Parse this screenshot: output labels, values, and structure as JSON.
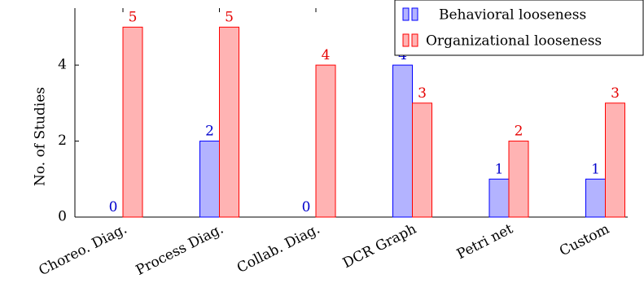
{
  "chart_data": {
    "type": "bar",
    "categories": [
      "Choreo. Diag.",
      "Process Diag.",
      "Collab. Diag.",
      "DCR Graph",
      "Petri net",
      "Custom"
    ],
    "series": [
      {
        "name": "Behavioral looseness",
        "values": [
          0,
          2,
          0,
          4,
          1,
          1
        ],
        "fill": "#b3b3ff",
        "stroke": "#0000ff",
        "label_color": "#0000cc"
      },
      {
        "name": "Organizational looseness",
        "values": [
          5,
          5,
          4,
          3,
          2,
          3
        ],
        "fill": "#ffb3b3",
        "stroke": "#ff0000",
        "label_color": "#e60000"
      }
    ],
    "ylabel": "No. of Studies",
    "xlabel": "",
    "ylim": [
      0,
      5.5
    ],
    "yticks": [
      0,
      2,
      4
    ],
    "legend_position": "top-right",
    "data_labels": true,
    "grid": false
  }
}
